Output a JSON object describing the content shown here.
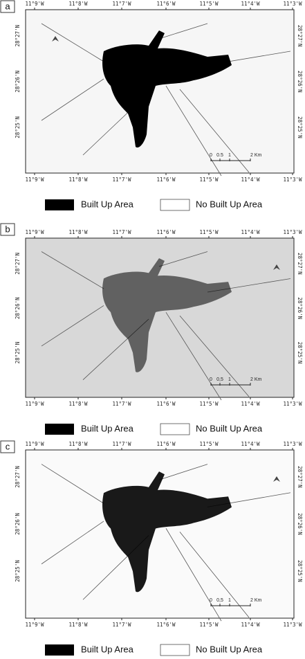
{
  "panels": [
    {
      "label": "a",
      "lon_top": [
        "11°9'W",
        "11°8'W",
        "11°7'W",
        "11°6'W",
        "11°5'W",
        "11°4'W",
        "11°3'W"
      ],
      "lon_bottom": [
        "11°9'W",
        "11°8'W",
        "11°7'W",
        "11°6'W",
        "11°5'W",
        "11°4'W",
        "11°3'W"
      ],
      "lat_left": [
        "28°27'N",
        "28°26'N",
        "28°25'N"
      ],
      "lat_right": [
        "28°27'N",
        "28°26'N",
        "28°25'N"
      ],
      "scale_labels": [
        "0",
        "0.5",
        "1",
        "2 Km"
      ],
      "legend": [
        "Built Up Area",
        "No Built Up Area"
      ]
    },
    {
      "label": "b",
      "lon_top": [
        "11°9'W",
        "11°8'W",
        "11°7'W",
        "11°6'W",
        "11°5'W",
        "11°4'W",
        "11°3'W"
      ],
      "lon_bottom": [
        "11°9'W",
        "11°8'W",
        "11°7'W",
        "11°6'W",
        "11°5'W",
        "11°4'W",
        "11°3'W"
      ],
      "lat_left": [
        "28°27'N",
        "28°26'N",
        "28°25'N"
      ],
      "lat_right": [
        "28°27'N",
        "28°26'N",
        "28°25'N"
      ],
      "scale_labels": [
        "0",
        "0,5",
        "1",
        "2 Km"
      ],
      "legend": [
        "Built Up Area",
        "No Built Up Area"
      ]
    },
    {
      "label": "c",
      "lon_top": [
        "11°9'W",
        "11°8'W",
        "11°7'W",
        "11°6'W",
        "11°5'W",
        "11°4'W",
        "11°3'W"
      ],
      "lon_bottom": [
        "11°9'W",
        "11°8'W",
        "11°7'W",
        "11°6'W",
        "11°5'W",
        "11°4'W",
        "11°3'W"
      ],
      "lat_left": [
        "28°27'N",
        "28°26'N",
        "28°25'N"
      ],
      "lat_right": [
        "28°27'N",
        "28°26'N",
        "28°25'N"
      ],
      "scale_labels": [
        "0",
        "0,5",
        "1",
        "2 Km"
      ],
      "legend": [
        "Built Up Area",
        "No Built Up Area"
      ]
    }
  ]
}
